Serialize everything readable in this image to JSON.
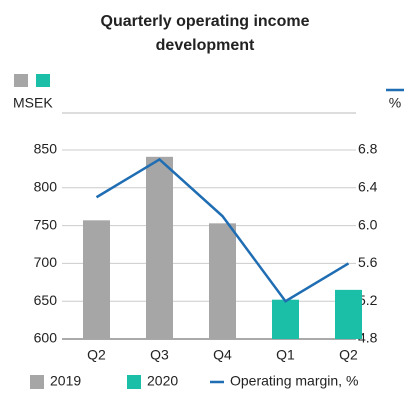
{
  "chart_data": {
    "type": "bar",
    "title_lines": [
      "Quarterly operating income",
      "development"
    ],
    "y_label": "MSEK",
    "y2_label": "%",
    "categories": [
      "Q2",
      "Q3",
      "Q4",
      "Q1",
      "Q2"
    ],
    "series": [
      {
        "name": "2019",
        "color": "#a6a6a6",
        "values": [
          757,
          841,
          753,
          null,
          null
        ]
      },
      {
        "name": "2020",
        "color": "#1bbfa8",
        "values": [
          null,
          null,
          null,
          652,
          665
        ]
      },
      {
        "name": "Operating margin, %",
        "color": "#1f6db2",
        "type": "line",
        "axis": "y2",
        "values": [
          6.3,
          6.7,
          6.1,
          5.2,
          5.6
        ]
      }
    ],
    "ylim": [
      600,
      850
    ],
    "yticks": [
      600,
      650,
      700,
      750,
      800,
      850
    ],
    "y2lim": [
      4.8,
      6.8
    ],
    "y2ticks": [
      {
        "value": 4.8,
        "label": "4.8"
      },
      {
        "value": 5.2,
        "label": "5.2"
      },
      {
        "value": 5.6,
        "label": "5.6"
      },
      {
        "value": 6.0,
        "label": "6.0"
      },
      {
        "value": 6.4,
        "label": "6.4"
      },
      {
        "value": 6.8,
        "label": "6.8"
      }
    ],
    "grid": true
  }
}
